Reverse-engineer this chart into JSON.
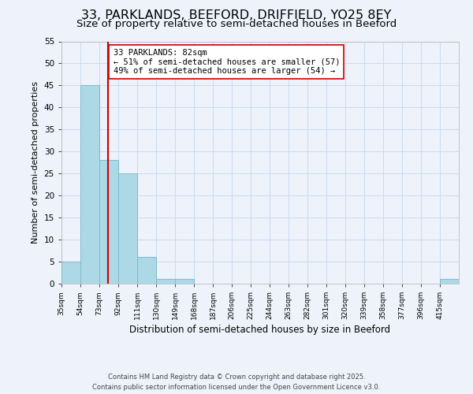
{
  "title": "33, PARKLANDS, BEEFORD, DRIFFIELD, YO25 8EY",
  "subtitle": "Size of property relative to semi-detached houses in Beeford",
  "xlabel": "Distribution of semi-detached houses by size in Beeford",
  "ylabel": "Number of semi-detached properties",
  "bin_edges": [
    35,
    54,
    73,
    92,
    111,
    130,
    149,
    168,
    187,
    206,
    225,
    244,
    263,
    282,
    301,
    320,
    339,
    358,
    377,
    396,
    415
  ],
  "bar_heights": [
    5,
    45,
    28,
    25,
    6,
    1,
    1,
    0,
    0,
    0,
    0,
    0,
    0,
    0,
    0,
    0,
    0,
    0,
    0,
    0,
    1
  ],
  "bar_color": "#add8e6",
  "bar_edgecolor": "#7bbcce",
  "property_size": 82,
  "red_line_color": "#cc0000",
  "ylim": [
    0,
    55
  ],
  "yticks": [
    0,
    5,
    10,
    15,
    20,
    25,
    30,
    35,
    40,
    45,
    50,
    55
  ],
  "annotation_text": "33 PARKLANDS: 82sqm\n← 51% of semi-detached houses are smaller (57)\n49% of semi-detached houses are larger (54) →",
  "annotation_box_edgecolor": "#cc0000",
  "annotation_box_facecolor": "#ffffff",
  "grid_color": "#ccddf0",
  "background_color": "#eef3fb",
  "footer_line1": "Contains HM Land Registry data © Crown copyright and database right 2025.",
  "footer_line2": "Contains public sector information licensed under the Open Government Licence v3.0.",
  "title_fontsize": 11.5,
  "subtitle_fontsize": 9.5,
  "xtick_labels": [
    "35sqm",
    "54sqm",
    "73sqm",
    "92sqm",
    "111sqm",
    "130sqm",
    "149sqm",
    "168sqm",
    "187sqm",
    "206sqm",
    "225sqm",
    "244sqm",
    "263sqm",
    "282sqm",
    "301sqm",
    "320sqm",
    "339sqm",
    "358sqm",
    "377sqm",
    "396sqm",
    "415sqm"
  ]
}
